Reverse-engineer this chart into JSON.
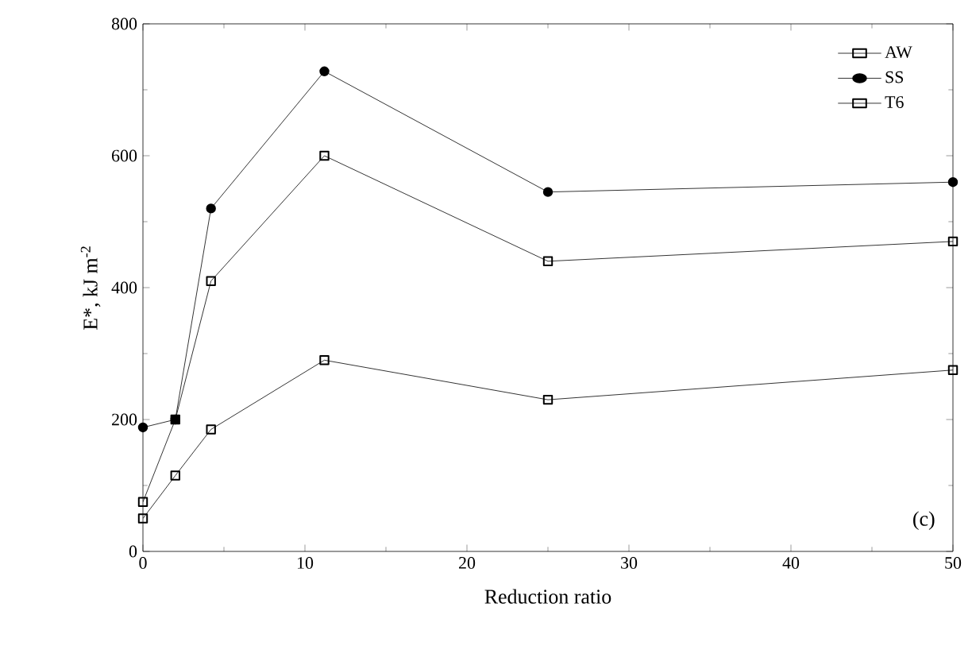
{
  "chart_data": {
    "type": "line",
    "xlabel": "Reduction ratio",
    "ylabel": "E*, kJ m$^{-2}$",
    "x": [
      0,
      2,
      4.2,
      11.2,
      25,
      50
    ],
    "series": [
      {
        "name": "AW",
        "color": "#000000",
        "marker": "square",
        "values": [
          75,
          200,
          410,
          600,
          440,
          470
        ]
      },
      {
        "name": "SS",
        "color": "#000000",
        "marker": "circle",
        "values": [
          188,
          200,
          520,
          728,
          545,
          560
        ]
      },
      {
        "name": "T6",
        "color": "#000000",
        "marker": "square",
        "values": [
          50,
          115,
          185,
          290,
          230,
          275
        ]
      }
    ],
    "xlim": [
      0,
      50
    ],
    "xticks": [
      0,
      10,
      20,
      30,
      40,
      50
    ],
    "ylim": [
      0,
      800
    ],
    "yticks": [
      0,
      200,
      400,
      600,
      800
    ],
    "grid": false,
    "legend": "top right",
    "line_style": "solid",
    "annotations": [
      "(c)"
    ]
  }
}
